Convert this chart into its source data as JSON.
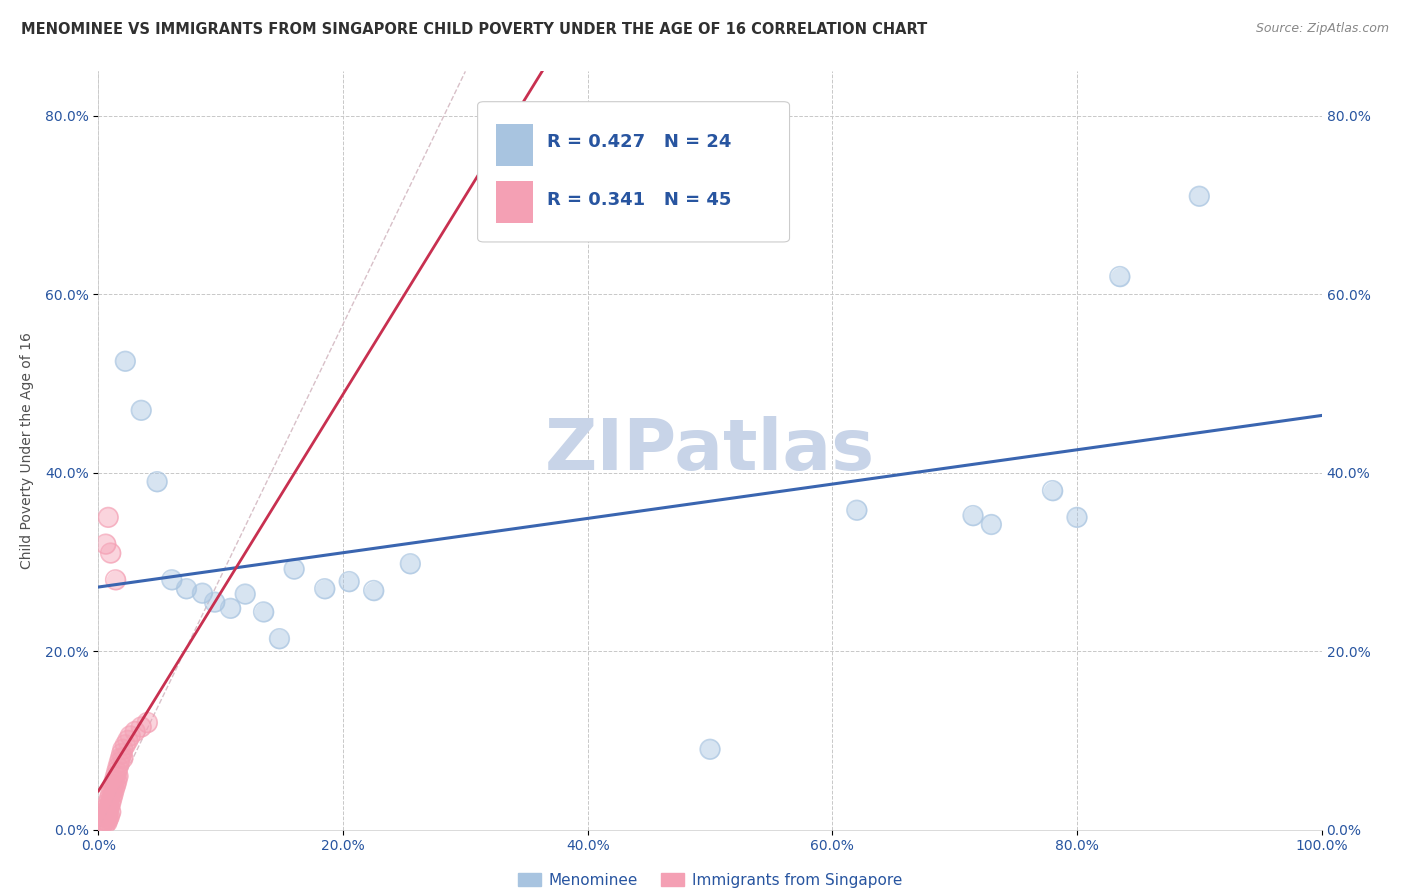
{
  "title": "MENOMINEE VS IMMIGRANTS FROM SINGAPORE CHILD POVERTY UNDER THE AGE OF 16 CORRELATION CHART",
  "source": "Source: ZipAtlas.com",
  "ylabel": "Child Poverty Under the Age of 16",
  "watermark": "ZIPatlas",
  "xlim": [
    0.0,
    1.0
  ],
  "ylim": [
    0.0,
    0.85
  ],
  "yticks": [
    0.0,
    0.2,
    0.4,
    0.6,
    0.8
  ],
  "xticks": [
    0.0,
    0.2,
    0.4,
    0.6,
    0.8,
    1.0
  ],
  "menominee_x": [
    0.022,
    0.035,
    0.048,
    0.06,
    0.072,
    0.085,
    0.095,
    0.108,
    0.12,
    0.135,
    0.148,
    0.16,
    0.185,
    0.205,
    0.225,
    0.255,
    0.5,
    0.62,
    0.715,
    0.73,
    0.78,
    0.8,
    0.835,
    0.9
  ],
  "menominee_y": [
    0.525,
    0.47,
    0.39,
    0.28,
    0.27,
    0.265,
    0.255,
    0.248,
    0.264,
    0.244,
    0.214,
    0.292,
    0.27,
    0.278,
    0.268,
    0.298,
    0.09,
    0.358,
    0.352,
    0.342,
    0.38,
    0.35,
    0.62,
    0.71
  ],
  "singapore_x": [
    0.003,
    0.004,
    0.005,
    0.005,
    0.006,
    0.006,
    0.007,
    0.007,
    0.007,
    0.008,
    0.008,
    0.008,
    0.009,
    0.009,
    0.009,
    0.01,
    0.01,
    0.01,
    0.011,
    0.011,
    0.012,
    0.012,
    0.013,
    0.013,
    0.014,
    0.014,
    0.015,
    0.015,
    0.016,
    0.016,
    0.017,
    0.018,
    0.019,
    0.02,
    0.02,
    0.022,
    0.024,
    0.026,
    0.03,
    0.035,
    0.04,
    0.006,
    0.008,
    0.01,
    0.014
  ],
  "singapore_y": [
    0.005,
    0.01,
    0.015,
    0.005,
    0.02,
    0.01,
    0.025,
    0.015,
    0.008,
    0.03,
    0.02,
    0.012,
    0.035,
    0.025,
    0.015,
    0.04,
    0.03,
    0.02,
    0.045,
    0.035,
    0.05,
    0.04,
    0.055,
    0.045,
    0.06,
    0.05,
    0.065,
    0.055,
    0.07,
    0.06,
    0.075,
    0.08,
    0.085,
    0.09,
    0.08,
    0.095,
    0.1,
    0.105,
    0.11,
    0.115,
    0.12,
    0.32,
    0.35,
    0.31,
    0.28
  ],
  "menominee_color": "#a8c4e0",
  "singapore_color": "#f4a0b4",
  "trendline_menominee_color": "#3a65b0",
  "trendline_singapore_color": "#c83050",
  "diagonal_color": "#d8c0c8",
  "diagonal_linestyle": "--",
  "background_color": "#ffffff",
  "grid_color": "#c8c8c8",
  "title_color": "#303030",
  "axis_label_color": "#505050",
  "tick_label_color": "#2855a0",
  "watermark_color": "#c8d4e8",
  "legend_text_color": "#2855a0",
  "title_fontsize": 10.5,
  "source_fontsize": 9,
  "axis_label_fontsize": 10,
  "tick_fontsize": 10,
  "legend_fontsize": 13,
  "watermark_fontsize": 52,
  "scatter_size": 200,
  "scatter_alpha": 0.45,
  "scatter_linewidth": 1.2
}
